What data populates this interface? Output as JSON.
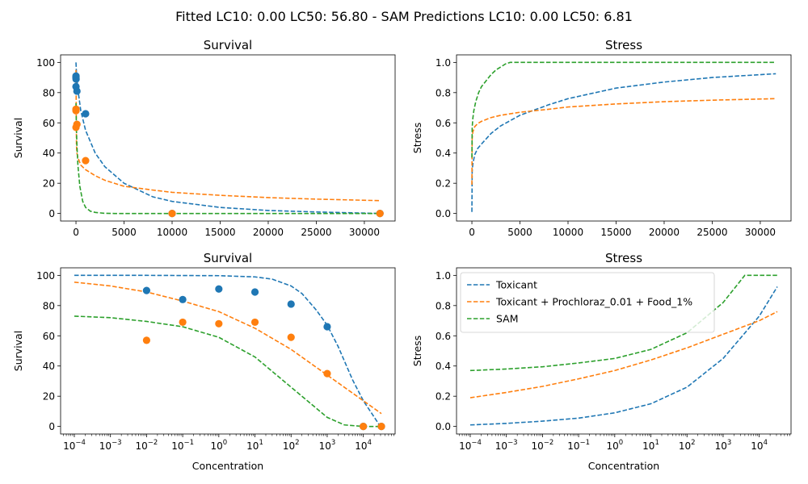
{
  "suptitle": "Fitted LC10: 0.00 LC50: 56.80 - SAM Predictions LC10: 0.00 LC50: 6.81",
  "colors": {
    "toxicant": "#1f77b4",
    "mixture": "#ff7f0e",
    "sam": "#2ca02c"
  },
  "chart_data": [
    {
      "type": "line",
      "title": "Survival",
      "xlabel": "",
      "ylabel": "Survival",
      "xscale": "linear",
      "xlim": [
        -1600,
        33200
      ],
      "ylim": [
        -5,
        105
      ],
      "xticks": [
        0,
        5000,
        10000,
        15000,
        20000,
        25000,
        30000
      ],
      "xtick_labels": [
        "0",
        "5000",
        "10000",
        "15000",
        "20000",
        "25000",
        "30000"
      ],
      "yticks": [
        0,
        20,
        40,
        60,
        80,
        100
      ],
      "ytick_labels": [
        "0",
        "20",
        "40",
        "60",
        "80",
        "100"
      ],
      "series": [
        {
          "name": "Toxicant",
          "style": "dashed",
          "color": "#1f77b4",
          "x": [
            0.0001,
            50,
            200,
            500,
            1000,
            2000,
            3000,
            5000,
            8000,
            10000,
            15000,
            20000,
            25000,
            31623
          ],
          "y": [
            100,
            93,
            82,
            68,
            55,
            40,
            31,
            20,
            11,
            8,
            4,
            2,
            1,
            0
          ]
        },
        {
          "name": "Toxicant + Prochloraz_0.01 + Food_1%",
          "style": "dashed",
          "color": "#ff7f0e",
          "x": [
            0.0001,
            50,
            100,
            200,
            500,
            1000,
            2000,
            3000,
            5000,
            8000,
            10000,
            15000,
            20000,
            25000,
            31623
          ],
          "y": [
            95,
            45,
            40,
            37,
            32,
            29,
            25,
            22,
            18,
            15.5,
            14,
            12,
            10.5,
            9.5,
            8.5
          ]
        },
        {
          "name": "SAM",
          "style": "dashed",
          "color": "#2ca02c",
          "x": [
            0.0001,
            50,
            100,
            200,
            400,
            700,
            1000,
            1500,
            2000,
            3000,
            4000,
            31623
          ],
          "y": [
            73,
            55,
            45,
            32,
            18,
            8,
            4,
            1.5,
            0.7,
            0.1,
            0,
            0
          ]
        },
        {
          "name": "",
          "type": "scatter",
          "color": "#1f77b4",
          "x": [
            0.01,
            0.1,
            1,
            10,
            100,
            1000,
            10000,
            31623
          ],
          "y": [
            90,
            84,
            91,
            89,
            81,
            66,
            0,
            0
          ]
        },
        {
          "name": "",
          "type": "scatter",
          "color": "#ff7f0e",
          "x": [
            0.01,
            0.1,
            1,
            10,
            100,
            1000,
            10000,
            31623
          ],
          "y": [
            57,
            69,
            68,
            69,
            59,
            35,
            0,
            0
          ]
        }
      ]
    },
    {
      "type": "line",
      "title": "Stress",
      "xlabel": "",
      "ylabel": "Stress",
      "xscale": "linear",
      "xlim": [
        -1600,
        33200
      ],
      "ylim": [
        -0.05,
        1.05
      ],
      "xticks": [
        0,
        5000,
        10000,
        15000,
        20000,
        25000,
        30000
      ],
      "xtick_labels": [
        "0",
        "5000",
        "10000",
        "15000",
        "20000",
        "25000",
        "30000"
      ],
      "yticks": [
        0,
        0.2,
        0.4,
        0.6,
        0.8,
        1.0
      ],
      "ytick_labels": [
        "0.0",
        "0.2",
        "0.4",
        "0.6",
        "0.8",
        "1.0"
      ],
      "series": [
        {
          "name": "Toxicant",
          "style": "dashed",
          "color": "#1f77b4",
          "x": [
            0.0001,
            30,
            100,
            300,
            600,
            1000,
            2000,
            3000,
            5000,
            8000,
            10000,
            15000,
            20000,
            25000,
            31623
          ],
          "y": [
            0.01,
            0.28,
            0.33,
            0.39,
            0.43,
            0.46,
            0.53,
            0.58,
            0.65,
            0.72,
            0.76,
            0.83,
            0.87,
            0.9,
            0.925
          ]
        },
        {
          "name": "Toxicant + Prochloraz_0.01 + Food_1%",
          "style": "dashed",
          "color": "#ff7f0e",
          "x": [
            0.0001,
            30,
            100,
            300,
            600,
            1000,
            2000,
            3000,
            5000,
            8000,
            10000,
            15000,
            20000,
            25000,
            31623
          ],
          "y": [
            0.19,
            0.5,
            0.54,
            0.575,
            0.595,
            0.61,
            0.635,
            0.65,
            0.67,
            0.69,
            0.705,
            0.725,
            0.74,
            0.75,
            0.76
          ]
        },
        {
          "name": "SAM",
          "style": "dashed",
          "color": "#2ca02c",
          "x": [
            0.0001,
            30,
            100,
            200,
            400,
            700,
            1000,
            1500,
            2000,
            2500,
            3000,
            3500,
            3981,
            31623
          ],
          "y": [
            0.37,
            0.57,
            0.63,
            0.68,
            0.74,
            0.8,
            0.84,
            0.88,
            0.92,
            0.95,
            0.97,
            0.99,
            1.0,
            1.0
          ]
        }
      ]
    },
    {
      "type": "line",
      "title": "Survival",
      "xlabel": "Concentration",
      "ylabel": "Survival",
      "xscale": "log",
      "xlim_log10": [
        -4.38,
        4.88
      ],
      "ylim": [
        -5,
        105
      ],
      "xticks_log10": [
        -4,
        -3,
        -2,
        -1,
        0,
        1,
        2,
        3,
        4
      ],
      "xtick_bases": [
        "10",
        "10",
        "10",
        "10",
        "10",
        "10",
        "10",
        "10",
        "10"
      ],
      "xtick_exponents": [
        "−4",
        "−3",
        "−2",
        "−1",
        "0",
        "1",
        "2",
        "3",
        "4"
      ],
      "yticks": [
        0,
        20,
        40,
        60,
        80,
        100
      ],
      "ytick_labels": [
        "0",
        "20",
        "40",
        "60",
        "80",
        "100"
      ],
      "series": [
        {
          "name": "Toxicant",
          "style": "dashed",
          "color": "#1f77b4",
          "x": [
            0.0001,
            0.01,
            1,
            10,
            30,
            100,
            200,
            500,
            1000,
            2000,
            5000,
            10000,
            31623
          ],
          "y": [
            100,
            100,
            99.8,
            99,
            97.5,
            93,
            88,
            77,
            67,
            53,
            31,
            17,
            -1
          ]
        },
        {
          "name": "Toxicant + Prochloraz_0.01 + Food_1%",
          "style": "dashed",
          "color": "#ff7f0e",
          "x": [
            0.0001,
            0.001,
            0.01,
            0.1,
            1,
            10,
            100,
            1000,
            10000,
            31623
          ],
          "y": [
            95.5,
            93,
            89,
            83,
            76,
            65,
            51,
            34,
            17,
            8.5
          ]
        },
        {
          "name": "SAM",
          "style": "dashed",
          "color": "#2ca02c",
          "x": [
            0.0001,
            0.001,
            0.01,
            0.1,
            1,
            10,
            100,
            1000,
            3000,
            10000,
            31623
          ],
          "y": [
            73,
            72,
            69.5,
            66,
            59,
            46,
            26,
            6,
            1,
            0,
            0
          ]
        },
        {
          "name": "",
          "type": "scatter",
          "color": "#1f77b4",
          "x": [
            0.01,
            0.1,
            1,
            10,
            100,
            1000,
            10000,
            31623
          ],
          "y": [
            90,
            84,
            91,
            89,
            81,
            66,
            0,
            0
          ]
        },
        {
          "name": "",
          "type": "scatter",
          "color": "#ff7f0e",
          "x": [
            0.01,
            0.1,
            1,
            10,
            100,
            1000,
            10000,
            31623
          ],
          "y": [
            57,
            69,
            68,
            69,
            59,
            35,
            0,
            0
          ]
        }
      ]
    },
    {
      "type": "line",
      "title": "Stress",
      "xlabel": "Concentration",
      "ylabel": "Stress",
      "xscale": "log",
      "xlim_log10": [
        -4.38,
        4.88
      ],
      "ylim": [
        -0.05,
        1.05
      ],
      "xticks_log10": [
        -4,
        -3,
        -2,
        -1,
        0,
        1,
        2,
        3,
        4
      ],
      "xtick_bases": [
        "10",
        "10",
        "10",
        "10",
        "10",
        "10",
        "10",
        "10",
        "10"
      ],
      "xtick_exponents": [
        "−4",
        "−3",
        "−2",
        "−1",
        "0",
        "1",
        "2",
        "3",
        "4"
      ],
      "yticks": [
        0,
        0.2,
        0.4,
        0.6,
        0.8,
        1.0
      ],
      "ytick_labels": [
        "0.0",
        "0.2",
        "0.4",
        "0.6",
        "0.8",
        "1.0"
      ],
      "legend": "top-left",
      "series": [
        {
          "name": "Toxicant",
          "style": "dashed",
          "color": "#1f77b4",
          "x": [
            0.0001,
            0.001,
            0.01,
            0.1,
            1,
            10,
            100,
            1000,
            10000,
            31623
          ],
          "y": [
            0.01,
            0.02,
            0.035,
            0.055,
            0.09,
            0.15,
            0.26,
            0.45,
            0.73,
            0.925
          ]
        },
        {
          "name": "Toxicant + Prochloraz_0.01 + Food_1%",
          "style": "dashed",
          "color": "#ff7f0e",
          "x": [
            0.0001,
            0.001,
            0.01,
            0.1,
            1,
            10,
            100,
            1000,
            10000,
            31623
          ],
          "y": [
            0.19,
            0.225,
            0.265,
            0.315,
            0.37,
            0.44,
            0.52,
            0.61,
            0.7,
            0.76
          ]
        },
        {
          "name": "SAM",
          "style": "dashed",
          "color": "#2ca02c",
          "x": [
            0.0001,
            0.001,
            0.01,
            0.1,
            1,
            10,
            100,
            1000,
            3981,
            31623
          ],
          "y": [
            0.37,
            0.38,
            0.395,
            0.42,
            0.45,
            0.51,
            0.62,
            0.82,
            1.0,
            1.0
          ]
        }
      ]
    }
  ]
}
